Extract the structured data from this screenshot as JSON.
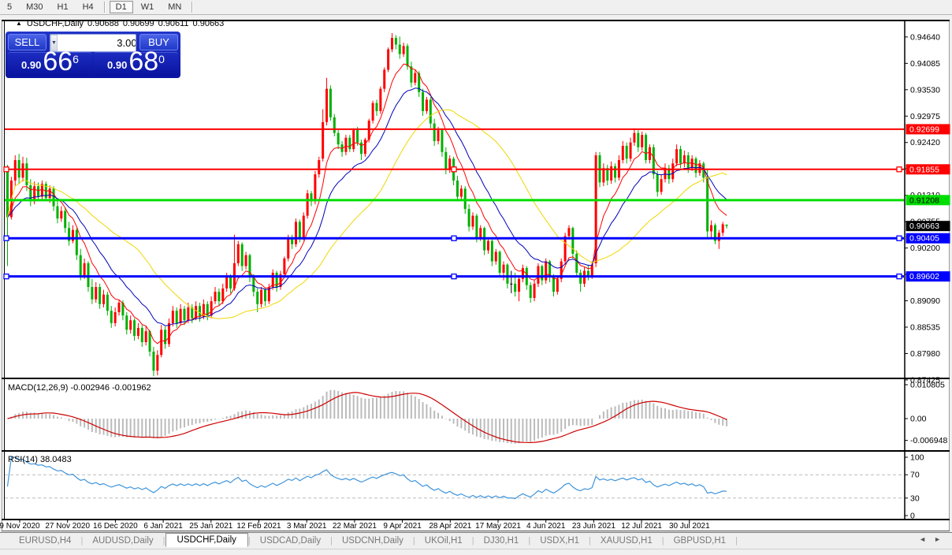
{
  "toolbar": {
    "timeframes": [
      "5",
      "M30",
      "H1",
      "H4",
      "D1",
      "W1",
      "MN"
    ],
    "active": "D1"
  },
  "chart_header": {
    "collapse_icon": "▲",
    "title": "USDCHF,Daily",
    "open": "0.90688",
    "high": "0.90699",
    "low": "0.90611",
    "close": "0.90663"
  },
  "trade_panel": {
    "sell_label": "SELL",
    "buy_label": "BUY",
    "volume": "3.00",
    "spinner_down": "▼",
    "spinner_up": "▲",
    "sell_price": {
      "small": "0.90",
      "big": "66",
      "sup": "6"
    },
    "buy_price": {
      "small": "0.90",
      "big": "68",
      "sup": "0"
    }
  },
  "indicators": {
    "macd_label": "MACD(12,26,9)",
    "macd_value": "-0.002946",
    "macd_signal_value": "-0.001962",
    "rsi_label": "RSI(14)",
    "rsi_value": "38.0483"
  },
  "tabs": {
    "items": [
      "EURUSD,H4",
      "AUDUSD,Daily",
      "USDCHF,Daily",
      "USDCAD,Daily",
      "USDCNH,Daily",
      "UKOil,H1",
      "DJ30,H1",
      "USDX,H1",
      "XAUUSD,H1",
      "GBPUSD,H1"
    ],
    "active_index": 2,
    "scroll_left": "◄",
    "scroll_right": "►"
  },
  "chart_data": {
    "type": "candlestick",
    "symbol": "USDCHF",
    "timeframe": "Daily",
    "up_color": "#ff0000",
    "down_color": "#00b000",
    "doji_color": "#000000",
    "axis": {
      "price_min": 0.8749,
      "price_max": 0.9492,
      "ticks": [
        "0.94640",
        "0.94085",
        "0.93530",
        "0.92975",
        "0.92420",
        "0.91865",
        "0.91310",
        "0.90755",
        "0.90200",
        "0.89645",
        "0.89090",
        "0.88535",
        "0.87980",
        "0.87425"
      ]
    },
    "current_price": {
      "value": 0.90663,
      "label": "0.90663",
      "bg": "#000000",
      "fg": "#ffffff"
    },
    "levels": [
      {
        "label": "0.92699",
        "price": 0.92699,
        "color": "#ff0000",
        "width": 2,
        "text_color": "#ffffff",
        "selected": false
      },
      {
        "label": "0.91855",
        "price": 0.91855,
        "color": "#ff0000",
        "width": 2,
        "text_color": "#ffffff",
        "selected": true
      },
      {
        "label": "0.91208",
        "price": 0.91208,
        "color": "#00dd00",
        "width": 3,
        "text_color": "#000000",
        "selected": false
      },
      {
        "label": "0.90405",
        "price": 0.90405,
        "color": "#0000ff",
        "width": 3,
        "text_color": "#ffffff",
        "selected": true
      },
      {
        "label": "0.89602",
        "price": 0.89602,
        "color": "#0000ff",
        "width": 3,
        "text_color": "#ffffff",
        "selected": true
      }
    ],
    "moving_averages": [
      {
        "period": 8,
        "method": "ema",
        "color": "#ff0000"
      },
      {
        "period": 17,
        "method": "ema",
        "color": "#0000bb"
      },
      {
        "period": 34,
        "method": "sma",
        "color": "#efd700"
      }
    ],
    "macd": {
      "fast": 12,
      "slow": 26,
      "signal": 9,
      "axis_labels": [
        "0.010805",
        "0.00",
        "-0.006948"
      ],
      "axis_values": [
        0.010805,
        0,
        -0.006948
      ],
      "bar_color": "#bbbbbb",
      "signal_color": "#cc0000"
    },
    "rsi": {
      "period": 14,
      "axis_labels": [
        "100",
        "70",
        "30",
        "0"
      ],
      "axis_values": [
        100,
        70,
        30,
        0
      ],
      "overbought": 70,
      "oversold": 30,
      "color": "#3e94db",
      "level_color": "#bbbbbb"
    },
    "dates": [
      "9 Nov 2020",
      "27 Nov 2020",
      "16 Dec 2020",
      "6 Jan 2021",
      "25 Jan 2021",
      "12 Feb 2021",
      "3 Mar 2021",
      "22 Mar 2021",
      "9 Apr 2021",
      "28 Apr 2021",
      "17 May 2021",
      "4 Jun 2021",
      "23 Jun 2021",
      "12 Jul 2021",
      "30 Jul 2021"
    ],
    "candles": [
      [
        0.9185,
        0.9195,
        0.8982,
        0.9085
      ],
      [
        0.9085,
        0.917,
        0.908,
        0.9162
      ],
      [
        0.9162,
        0.9215,
        0.915,
        0.9205
      ],
      [
        0.9205,
        0.9218,
        0.9155,
        0.9168
      ],
      [
        0.9168,
        0.9212,
        0.916,
        0.9198
      ],
      [
        0.9198,
        0.921,
        0.914,
        0.9152
      ],
      [
        0.9152,
        0.9165,
        0.9108,
        0.9118
      ],
      [
        0.9118,
        0.916,
        0.9112,
        0.915
      ],
      [
        0.915,
        0.9158,
        0.9118,
        0.9128
      ],
      [
        0.9128,
        0.9162,
        0.912,
        0.9155
      ],
      [
        0.9155,
        0.916,
        0.9118,
        0.9125
      ],
      [
        0.9125,
        0.9152,
        0.9115,
        0.9145
      ],
      [
        0.9145,
        0.915,
        0.9098,
        0.9108
      ],
      [
        0.9108,
        0.9122,
        0.9072,
        0.9082
      ],
      [
        0.9082,
        0.9108,
        0.9075,
        0.9098
      ],
      [
        0.9098,
        0.9105,
        0.9052,
        0.9062
      ],
      [
        0.9062,
        0.9075,
        0.9025,
        0.9035
      ],
      [
        0.9035,
        0.9068,
        0.903,
        0.9058
      ],
      [
        0.9058,
        0.9062,
        0.8995,
        0.9005
      ],
      [
        0.9005,
        0.9018,
        0.8952,
        0.8962
      ],
      [
        0.8962,
        0.8998,
        0.8955,
        0.8988
      ],
      [
        0.8988,
        0.8992,
        0.8928,
        0.8938
      ],
      [
        0.8938,
        0.8955,
        0.8902,
        0.8912
      ],
      [
        0.8912,
        0.8948,
        0.8905,
        0.8938
      ],
      [
        0.8938,
        0.8945,
        0.8892,
        0.8902
      ],
      [
        0.8902,
        0.8932,
        0.8895,
        0.8922
      ],
      [
        0.8922,
        0.8928,
        0.8878,
        0.8888
      ],
      [
        0.8888,
        0.8898,
        0.8852,
        0.8862
      ],
      [
        0.8862,
        0.8895,
        0.8855,
        0.8885
      ],
      [
        0.8885,
        0.8912,
        0.8878,
        0.8905
      ],
      [
        0.8905,
        0.891,
        0.8868,
        0.8878
      ],
      [
        0.8878,
        0.8885,
        0.8838,
        0.8848
      ],
      [
        0.8848,
        0.8878,
        0.884,
        0.8868
      ],
      [
        0.8868,
        0.8872,
        0.8825,
        0.8835
      ],
      [
        0.8835,
        0.8862,
        0.8828,
        0.8852
      ],
      [
        0.8852,
        0.8858,
        0.8812,
        0.8822
      ],
      [
        0.8822,
        0.8855,
        0.8815,
        0.8845
      ],
      [
        0.8845,
        0.8848,
        0.8792,
        0.8802
      ],
      [
        0.8802,
        0.8812,
        0.875,
        0.8762
      ],
      [
        0.8762,
        0.8805,
        0.8752,
        0.8795
      ],
      [
        0.8795,
        0.8858,
        0.879,
        0.8848
      ],
      [
        0.8848,
        0.8855,
        0.8808,
        0.8818
      ],
      [
        0.8818,
        0.8872,
        0.8812,
        0.8862
      ],
      [
        0.8862,
        0.8898,
        0.8855,
        0.8888
      ],
      [
        0.8888,
        0.8895,
        0.8852,
        0.8862
      ],
      [
        0.8862,
        0.8902,
        0.8858,
        0.8892
      ],
      [
        0.8892,
        0.8898,
        0.8858,
        0.8868
      ],
      [
        0.8868,
        0.8905,
        0.8862,
        0.8895
      ],
      [
        0.8895,
        0.8902,
        0.8862,
        0.8872
      ],
      [
        0.8872,
        0.8908,
        0.8868,
        0.8898
      ],
      [
        0.8898,
        0.8905,
        0.8865,
        0.8875
      ],
      [
        0.8875,
        0.8912,
        0.887,
        0.8902
      ],
      [
        0.8902,
        0.8908,
        0.8868,
        0.8878
      ],
      [
        0.8878,
        0.8918,
        0.8872,
        0.8908
      ],
      [
        0.8908,
        0.8938,
        0.8902,
        0.8928
      ],
      [
        0.8928,
        0.8935,
        0.8898,
        0.8908
      ],
      [
        0.8908,
        0.8945,
        0.8902,
        0.8935
      ],
      [
        0.8935,
        0.8968,
        0.8928,
        0.8958
      ],
      [
        0.8958,
        0.8965,
        0.8925,
        0.8935
      ],
      [
        0.8935,
        0.9048,
        0.893,
        0.8988
      ],
      [
        0.8988,
        0.9035,
        0.8982,
        0.9028
      ],
      [
        0.9028,
        0.9032,
        0.8972,
        0.8982
      ],
      [
        0.8982,
        0.9012,
        0.8975,
        0.9005
      ],
      [
        0.9005,
        0.9008,
        0.8948,
        0.8958
      ],
      [
        0.8958,
        0.8965,
        0.8918,
        0.8928
      ],
      [
        0.8928,
        0.8935,
        0.8885,
        0.8902
      ],
      [
        0.8902,
        0.8938,
        0.8895,
        0.8932
      ],
      [
        0.8932,
        0.8936,
        0.8898,
        0.8908
      ],
      [
        0.8908,
        0.8945,
        0.8902,
        0.8938
      ],
      [
        0.8938,
        0.8975,
        0.8932,
        0.8968
      ],
      [
        0.8968,
        0.8972,
        0.8928,
        0.8938
      ],
      [
        0.8938,
        0.8972,
        0.8932,
        0.8965
      ],
      [
        0.8965,
        0.9002,
        0.8958,
        0.8998
      ],
      [
        0.8998,
        0.9048,
        0.8992,
        0.9042
      ],
      [
        0.9042,
        0.9048,
        0.9018,
        0.9028
      ],
      [
        0.9028,
        0.9082,
        0.9022,
        0.9075
      ],
      [
        0.9075,
        0.908,
        0.9032,
        0.9042
      ],
      [
        0.9042,
        0.9095,
        0.9036,
        0.9088
      ],
      [
        0.9088,
        0.9142,
        0.9082,
        0.9135
      ],
      [
        0.9135,
        0.914,
        0.9108,
        0.9118
      ],
      [
        0.9118,
        0.9182,
        0.9112,
        0.9175
      ],
      [
        0.9175,
        0.9212,
        0.9168,
        0.9205
      ],
      [
        0.9208,
        0.9312,
        0.9202,
        0.9285
      ],
      [
        0.9285,
        0.9378,
        0.9278,
        0.9355
      ],
      [
        0.9355,
        0.9362,
        0.9288,
        0.9295
      ],
      [
        0.9295,
        0.9302,
        0.9255,
        0.9262
      ],
      [
        0.9262,
        0.9268,
        0.9228,
        0.9238
      ],
      [
        0.9238,
        0.9245,
        0.9212,
        0.9222
      ],
      [
        0.9222,
        0.9258,
        0.9215,
        0.9252
      ],
      [
        0.9252,
        0.9258,
        0.9222,
        0.9228
      ],
      [
        0.9228,
        0.9272,
        0.9222,
        0.9268
      ],
      [
        0.9268,
        0.9275,
        0.9235,
        0.9242
      ],
      [
        0.9242,
        0.9248,
        0.9205,
        0.9218
      ],
      [
        0.9218,
        0.9252,
        0.9212,
        0.9248
      ],
      [
        0.9248,
        0.9292,
        0.9242,
        0.9288
      ],
      [
        0.9288,
        0.933,
        0.9282,
        0.9325
      ],
      [
        0.9325,
        0.9332,
        0.9298,
        0.9308
      ],
      [
        0.9308,
        0.936,
        0.9302,
        0.9355
      ],
      [
        0.9355,
        0.94,
        0.9348,
        0.9395
      ],
      [
        0.9395,
        0.9442,
        0.939,
        0.9438
      ],
      [
        0.9438,
        0.9472,
        0.9432,
        0.9462
      ],
      [
        0.9462,
        0.9468,
        0.9438,
        0.9448
      ],
      [
        0.9448,
        0.9465,
        0.9418,
        0.9428
      ],
      [
        0.9428,
        0.9452,
        0.9422,
        0.9445
      ],
      [
        0.9445,
        0.945,
        0.9395,
        0.9402
      ],
      [
        0.9402,
        0.9412,
        0.9358,
        0.9368
      ],
      [
        0.9368,
        0.9395,
        0.9362,
        0.9388
      ],
      [
        0.9388,
        0.9392,
        0.9338,
        0.9348
      ],
      [
        0.9348,
        0.9355,
        0.9298,
        0.9308
      ],
      [
        0.9308,
        0.9338,
        0.9302,
        0.9332
      ],
      [
        0.9332,
        0.9338,
        0.9272,
        0.9282
      ],
      [
        0.9282,
        0.9292,
        0.9235,
        0.9245
      ],
      [
        0.9245,
        0.9275,
        0.9238,
        0.9268
      ],
      [
        0.9268,
        0.9272,
        0.9212,
        0.9222
      ],
      [
        0.9222,
        0.9232,
        0.9175,
        0.9185
      ],
      [
        0.9185,
        0.9215,
        0.9178,
        0.9208
      ],
      [
        0.9208,
        0.9212,
        0.9152,
        0.9162
      ],
      [
        0.9162,
        0.9172,
        0.9118,
        0.9128
      ],
      [
        0.9128,
        0.9152,
        0.9122,
        0.9145
      ],
      [
        0.9145,
        0.915,
        0.9092,
        0.9102
      ],
      [
        0.9102,
        0.9112,
        0.9055,
        0.9065
      ],
      [
        0.9065,
        0.9095,
        0.9058,
        0.9088
      ],
      [
        0.9088,
        0.9092,
        0.9032,
        0.9042
      ],
      [
        0.9042,
        0.9068,
        0.9035,
        0.9062
      ],
      [
        0.9062,
        0.9065,
        0.9005,
        0.9015
      ],
      [
        0.9015,
        0.9042,
        0.9008,
        0.9035
      ],
      [
        0.9035,
        0.9038,
        0.8982,
        0.8992
      ],
      [
        0.8992,
        0.9018,
        0.8985,
        0.9012
      ],
      [
        0.9012,
        0.9015,
        0.8958,
        0.8968
      ],
      [
        0.8968,
        0.8992,
        0.8952,
        0.8985
      ],
      [
        0.8985,
        0.8988,
        0.8935,
        0.8945
      ],
      [
        0.8945,
        0.8972,
        0.8925,
        0.8945
      ],
      [
        0.8945,
        0.8968,
        0.8918,
        0.8928
      ],
      [
        0.8928,
        0.8962,
        0.8908,
        0.8955
      ],
      [
        0.8955,
        0.8985,
        0.8948,
        0.8978
      ],
      [
        0.8978,
        0.8982,
        0.8932,
        0.8942
      ],
      [
        0.8942,
        0.8948,
        0.8905,
        0.8915
      ],
      [
        0.8915,
        0.8952,
        0.8908,
        0.8945
      ],
      [
        0.8945,
        0.8988,
        0.8938,
        0.8982
      ],
      [
        0.8982,
        0.8985,
        0.8942,
        0.8952
      ],
      [
        0.8952,
        0.8998,
        0.8945,
        0.8992
      ],
      [
        0.8992,
        0.8995,
        0.8948,
        0.8958
      ],
      [
        0.8958,
        0.8965,
        0.8918,
        0.8928
      ],
      [
        0.8928,
        0.8962,
        0.8922,
        0.8955
      ],
      [
        0.8955,
        0.8998,
        0.8948,
        0.8992
      ],
      [
        0.8992,
        0.9052,
        0.8985,
        0.9045
      ],
      [
        0.9045,
        0.9068,
        0.9038,
        0.9062
      ],
      [
        0.9062,
        0.9065,
        0.8998,
        0.9008
      ],
      [
        0.9008,
        0.9015,
        0.8958,
        0.8968
      ],
      [
        0.8968,
        0.8975,
        0.8928,
        0.8945
      ],
      [
        0.8945,
        0.898,
        0.8938,
        0.8972
      ],
      [
        0.8972,
        0.8985,
        0.8952,
        0.8962
      ],
      [
        0.8962,
        0.8992,
        0.8955,
        0.8985
      ],
      [
        0.8988,
        0.9222,
        0.898,
        0.9215
      ],
      [
        0.9215,
        0.9222,
        0.9148,
        0.9158
      ],
      [
        0.9158,
        0.9198,
        0.915,
        0.9188
      ],
      [
        0.9188,
        0.9195,
        0.9152,
        0.9162
      ],
      [
        0.9162,
        0.9202,
        0.9155,
        0.9192
      ],
      [
        0.9192,
        0.9198,
        0.9158,
        0.9168
      ],
      [
        0.9168,
        0.9215,
        0.9162,
        0.9205
      ],
      [
        0.9205,
        0.9245,
        0.9198,
        0.9235
      ],
      [
        0.9235,
        0.9242,
        0.9198,
        0.9208
      ],
      [
        0.9208,
        0.9252,
        0.9202,
        0.9242
      ],
      [
        0.9242,
        0.9272,
        0.9235,
        0.9262
      ],
      [
        0.9262,
        0.9268,
        0.9222,
        0.9232
      ],
      [
        0.9232,
        0.9265,
        0.9225,
        0.9258
      ],
      [
        0.9258,
        0.9262,
        0.9198,
        0.9205
      ],
      [
        0.9205,
        0.9238,
        0.9198,
        0.9232
      ],
      [
        0.9232,
        0.9238,
        0.9165,
        0.9175
      ],
      [
        0.9175,
        0.9182,
        0.9128,
        0.9138
      ],
      [
        0.9138,
        0.9175,
        0.9132,
        0.9165
      ],
      [
        0.9165,
        0.9198,
        0.9158,
        0.9188
      ],
      [
        0.9188,
        0.9195,
        0.9155,
        0.9165
      ],
      [
        0.9165,
        0.9208,
        0.9158,
        0.9198
      ],
      [
        0.9198,
        0.9238,
        0.9192,
        0.9228
      ],
      [
        0.9228,
        0.9235,
        0.9188,
        0.9198
      ],
      [
        0.9198,
        0.9225,
        0.919,
        0.9215
      ],
      [
        0.9215,
        0.9222,
        0.9178,
        0.9188
      ],
      [
        0.9188,
        0.9215,
        0.9182,
        0.9208
      ],
      [
        0.9208,
        0.9212,
        0.9168,
        0.9178
      ],
      [
        0.9178,
        0.9205,
        0.9172,
        0.9198
      ],
      [
        0.9198,
        0.9202,
        0.9158,
        0.9168
      ],
      [
        0.9168,
        0.9185,
        0.9042,
        0.9055
      ],
      [
        0.9055,
        0.9078,
        0.904,
        0.9068
      ],
      [
        0.9068,
        0.9072,
        0.9028,
        0.9035
      ],
      [
        0.9035,
        0.9058,
        0.9018,
        0.9052
      ],
      [
        0.9052,
        0.9075,
        0.9045,
        0.907
      ],
      [
        0.90688,
        0.90699,
        0.90611,
        0.90663
      ]
    ]
  }
}
